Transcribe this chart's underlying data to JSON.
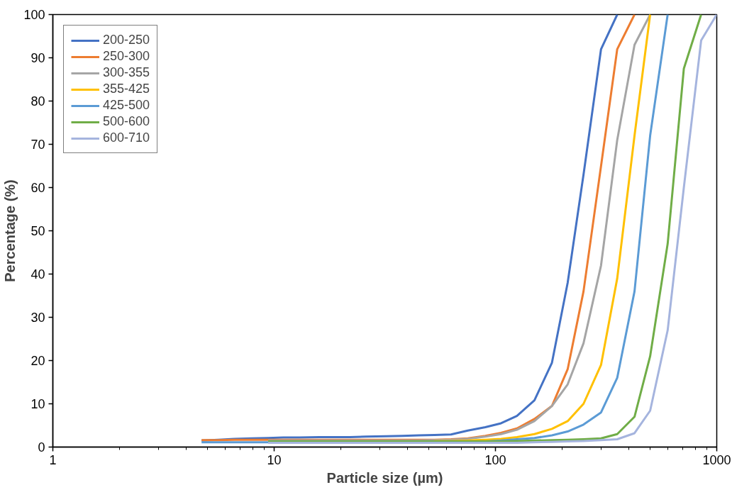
{
  "chart_data": {
    "type": "line",
    "xlabel": "Particle size (µm)",
    "ylabel": "Percentage (%)",
    "log": "x",
    "xlim": [
      1,
      1000
    ],
    "xticks": [
      1,
      10,
      100,
      1000
    ],
    "ylim": [
      0,
      100
    ],
    "yticks": [
      0,
      10,
      20,
      30,
      40,
      50,
      60,
      70,
      80,
      90,
      100
    ],
    "grid": false,
    "legend": "top left",
    "marker": "none",
    "line_style": "solid",
    "x": [
      4.7,
      5.6,
      6.6,
      7.9,
      9.4,
      11,
      13,
      16,
      19,
      22,
      26,
      32,
      38,
      45,
      53,
      63,
      75,
      90,
      106,
      125,
      150,
      180,
      212,
      250,
      300,
      355,
      425,
      500,
      600,
      710,
      850,
      1000
    ],
    "series": [
      {
        "name": "200-250",
        "color": "#4472c4",
        "values": [
          1.5,
          1.7,
          1.9,
          2.0,
          2.1,
          2.2,
          2.2,
          2.3,
          2.3,
          2.3,
          2.4,
          2.5,
          2.6,
          2.7,
          2.8,
          2.9,
          3.8,
          4.6,
          5.5,
          7.2,
          10.8,
          19.5,
          38,
          63,
          92,
          100,
          null,
          null,
          null,
          null,
          null,
          null
        ]
      },
      {
        "name": "250-300",
        "color": "#ed7d31",
        "values": [
          1.6,
          1.6,
          1.7,
          1.7,
          1.7,
          1.7,
          1.7,
          1.7,
          1.7,
          1.7,
          1.7,
          1.7,
          1.7,
          1.7,
          1.7,
          1.8,
          2.0,
          2.6,
          3.3,
          4.3,
          6.5,
          9.5,
          18,
          36,
          65,
          92,
          100,
          null,
          null,
          null,
          null,
          null
        ]
      },
      {
        "name": "300-355",
        "color": "#a5a5a5",
        "values": [
          null,
          null,
          null,
          null,
          1.5,
          1.5,
          1.5,
          1.5,
          1.5,
          1.5,
          1.5,
          1.5,
          1.5,
          1.5,
          1.6,
          1.7,
          1.9,
          2.4,
          3,
          4,
          6,
          9.5,
          14.5,
          24,
          42,
          71,
          93,
          100,
          null,
          null,
          null,
          null
        ]
      },
      {
        "name": "355-425",
        "color": "#ffc000",
        "values": [
          null,
          null,
          null,
          null,
          null,
          null,
          null,
          null,
          null,
          null,
          null,
          null,
          null,
          null,
          1.4,
          1.4,
          1.5,
          1.7,
          1.9,
          2.3,
          3,
          4.2,
          6,
          10,
          19,
          39,
          72,
          100,
          null,
          null,
          null,
          null
        ]
      },
      {
        "name": "425-500",
        "color": "#5b9bd5",
        "values": [
          1.1,
          1.1,
          1.1,
          1.1,
          1.1,
          1.1,
          1.1,
          1.1,
          1.1,
          1.1,
          1.1,
          1.1,
          1.1,
          1.1,
          1.1,
          1.1,
          1.2,
          1.3,
          1.5,
          1.8,
          2.1,
          2.7,
          3.6,
          5.2,
          8,
          16,
          36,
          72,
          100,
          null,
          null,
          null
        ]
      },
      {
        "name": "500-600",
        "color": "#70ad47",
        "values": [
          null,
          null,
          null,
          null,
          1.3,
          1.3,
          1.3,
          1.3,
          1.3,
          1.3,
          1.3,
          1.3,
          1.3,
          1.3,
          1.3,
          1.3,
          1.3,
          1.3,
          1.3,
          1.4,
          1.5,
          1.6,
          1.7,
          1.8,
          2,
          3,
          7,
          21,
          47,
          87.5,
          100,
          null
        ]
      },
      {
        "name": "600-710",
        "color": "#a5b4de",
        "values": [
          null,
          null,
          null,
          null,
          1.0,
          1.0,
          1.0,
          1.0,
          1.0,
          1.0,
          1.0,
          1.0,
          1.0,
          1.0,
          1.0,
          1.0,
          1.0,
          1.0,
          1.0,
          1.0,
          1.1,
          1.2,
          1.3,
          1.4,
          1.6,
          1.8,
          3.2,
          8.4,
          27,
          60,
          94,
          100
        ]
      }
    ]
  }
}
